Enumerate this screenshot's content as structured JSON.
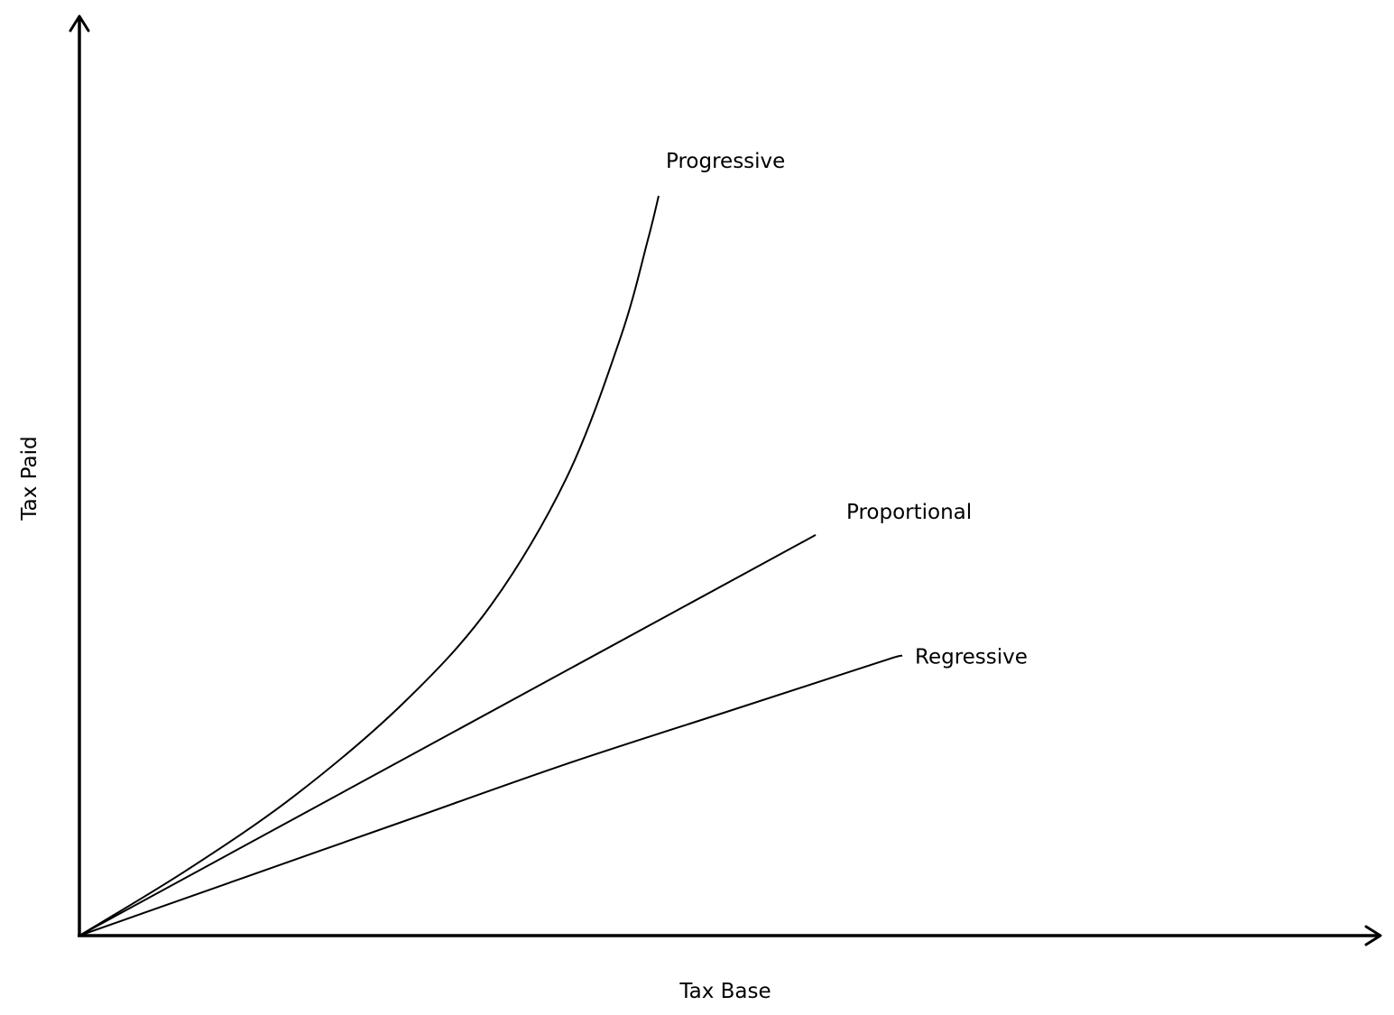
{
  "chart_data": {
    "type": "line",
    "title": "",
    "xlabel": "Tax Base",
    "ylabel": "Tax Paid",
    "grid": false,
    "legend": "none",
    "axis_color": "#000000",
    "line_color": "#000000",
    "xlim": [
      0,
      10
    ],
    "ylim": [
      0,
      10
    ],
    "series": [
      {
        "name": "Progressive",
        "points": [
          [
            0,
            0
          ],
          [
            1.0,
            0.75
          ],
          [
            2.0,
            1.6
          ],
          [
            3.0,
            2.65
          ],
          [
            3.8,
            3.75
          ],
          [
            4.5,
            5.2
          ],
          [
            5.0,
            6.8
          ],
          [
            5.25,
            7.9
          ],
          [
            5.35,
            8.4
          ]
        ]
      },
      {
        "name": "Proportional",
        "points": [
          [
            0,
            0
          ],
          [
            6.8,
            4.55
          ]
        ]
      },
      {
        "name": "Regressive",
        "points": [
          [
            0,
            0
          ],
          [
            1.5,
            0.65
          ],
          [
            3.0,
            1.3
          ],
          [
            4.5,
            1.95
          ],
          [
            6.0,
            2.55
          ],
          [
            7.0,
            2.95
          ],
          [
            7.5,
            3.15
          ],
          [
            7.6,
            3.18
          ]
        ]
      }
    ]
  }
}
